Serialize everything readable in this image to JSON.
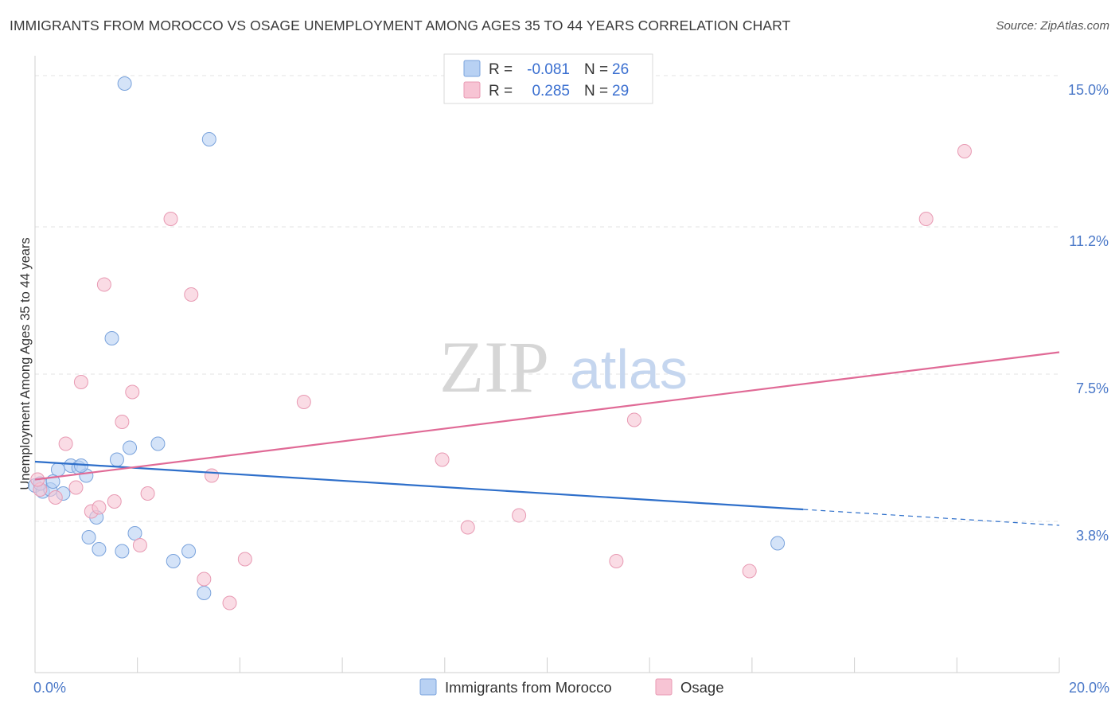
{
  "header": {
    "title": "IMMIGRANTS FROM MOROCCO VS OSAGE UNEMPLOYMENT AMONG AGES 35 TO 44 YEARS CORRELATION CHART",
    "source": "Source: ZipAtlas.com"
  },
  "watermark": {
    "zip": "ZIP",
    "atlas": "atlas"
  },
  "colors": {
    "blue_fill": "#b8d1f3",
    "blue_stroke": "#7aa3dc",
    "blue_line": "#2e6fca",
    "pink_fill": "#f7c4d4",
    "pink_stroke": "#e89ab3",
    "pink_line": "#e06a96",
    "tick_label": "#4a78c8",
    "grid": "#e3e3e3"
  },
  "stats_legend": {
    "rows": [
      {
        "r_label": "R =",
        "r_value": "-0.081",
        "n_label": "N =",
        "n_value": "26"
      },
      {
        "r_label": "R =",
        "r_value": "0.285",
        "n_label": "N =",
        "n_value": "29"
      }
    ]
  },
  "chart_data": {
    "type": "scatter",
    "title": "IMMIGRANTS FROM MOROCCO VS OSAGE UNEMPLOYMENT AMONG AGES 35 TO 44 YEARS CORRELATION CHART",
    "xlabel": "",
    "ylabel": "Unemployment Among Ages 35 to 44 years",
    "xlim": [
      0,
      20
    ],
    "ylim": [
      0,
      15.5
    ],
    "x_tick_labels": [
      "0.0%",
      "20.0%"
    ],
    "y_ticks": [
      3.8,
      7.5,
      11.2,
      15.0
    ],
    "y_tick_labels": [
      "3.8%",
      "7.5%",
      "11.2%",
      "15.0%"
    ],
    "grid": true,
    "legend": "bottom-center",
    "series": [
      {
        "name": "Immigrants from Morocco",
        "color": "#b8d1f3",
        "points": [
          [
            0.0,
            4.7
          ],
          [
            0.15,
            4.55
          ],
          [
            0.3,
            4.6
          ],
          [
            0.45,
            5.1
          ],
          [
            0.7,
            5.2
          ],
          [
            0.85,
            5.15
          ],
          [
            1.0,
            4.95
          ],
          [
            0.55,
            4.5
          ],
          [
            1.2,
            3.9
          ],
          [
            1.05,
            3.4
          ],
          [
            1.25,
            3.1
          ],
          [
            1.5,
            8.4
          ],
          [
            1.6,
            5.35
          ],
          [
            1.7,
            3.05
          ],
          [
            1.85,
            5.65
          ],
          [
            1.95,
            3.5
          ],
          [
            1.75,
            14.8
          ],
          [
            2.4,
            5.75
          ],
          [
            2.7,
            2.8
          ],
          [
            3.0,
            3.05
          ],
          [
            3.3,
            2.0
          ],
          [
            3.4,
            13.4
          ],
          [
            14.5,
            3.25
          ],
          [
            0.1,
            4.75
          ],
          [
            0.35,
            4.8
          ],
          [
            0.9,
            5.2
          ]
        ],
        "trend": {
          "x": [
            0,
            15
          ],
          "y": [
            5.3,
            4.1
          ],
          "dashed_extension": {
            "x": [
              15,
              20
            ],
            "y": [
              4.1,
              3.7
            ]
          }
        }
      },
      {
        "name": "Osage",
        "color": "#f7c4d4",
        "points": [
          [
            0.1,
            4.6
          ],
          [
            0.4,
            4.4
          ],
          [
            0.6,
            5.75
          ],
          [
            0.8,
            4.65
          ],
          [
            0.9,
            7.3
          ],
          [
            1.1,
            4.05
          ],
          [
            1.25,
            4.15
          ],
          [
            1.35,
            9.75
          ],
          [
            1.55,
            4.3
          ],
          [
            1.7,
            6.3
          ],
          [
            1.9,
            7.05
          ],
          [
            2.05,
            3.2
          ],
          [
            2.2,
            4.5
          ],
          [
            2.65,
            11.4
          ],
          [
            3.05,
            9.5
          ],
          [
            3.3,
            2.35
          ],
          [
            3.45,
            4.95
          ],
          [
            3.8,
            1.75
          ],
          [
            4.1,
            2.85
          ],
          [
            5.25,
            6.8
          ],
          [
            7.95,
            5.35
          ],
          [
            8.45,
            3.65
          ],
          [
            9.45,
            3.95
          ],
          [
            11.35,
            2.8
          ],
          [
            11.7,
            6.35
          ],
          [
            13.95,
            2.55
          ],
          [
            17.4,
            11.4
          ],
          [
            18.15,
            13.1
          ],
          [
            0.05,
            4.85
          ]
        ],
        "trend": {
          "x": [
            0,
            20
          ],
          "y": [
            4.85,
            8.05
          ]
        }
      }
    ]
  }
}
